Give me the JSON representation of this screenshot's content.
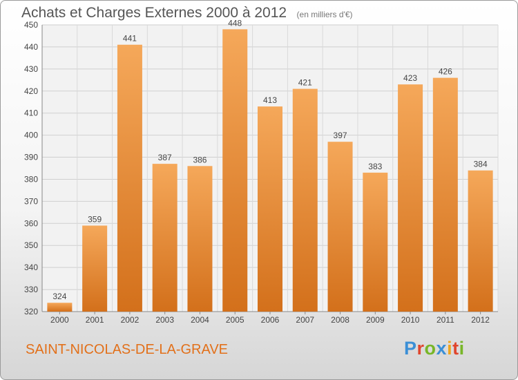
{
  "title": "Achats et Charges Externes 2000 à 2012",
  "unit_note": "(en milliers d'€)",
  "location": "SAINT-NICOLAS-DE-LA-GRAVE",
  "brand": {
    "letters": [
      "P",
      "r",
      "o",
      "x",
      "i",
      "t",
      "i"
    ],
    "colors": [
      "#3b8fd6",
      "#e0462e",
      "#78b628",
      "#3b8fd6",
      "#f0a51c",
      "#e0462e",
      "#78b628"
    ]
  },
  "colors": {
    "bar_light": "#f5a85a",
    "bar_dark": "#d3701b",
    "location_text": "#e2701a"
  },
  "chart_data": {
    "type": "bar",
    "title": "Achats et Charges Externes 2000 à 2012",
    "subtitle": "(en milliers d'€)",
    "categories": [
      "2000",
      "2001",
      "2002",
      "2003",
      "2004",
      "2005",
      "2006",
      "2007",
      "2008",
      "2009",
      "2010",
      "2011",
      "2012"
    ],
    "values": [
      324,
      359,
      441,
      387,
      386,
      448,
      413,
      421,
      397,
      383,
      423,
      426,
      384
    ],
    "ylim": [
      320,
      450
    ],
    "yticks": [
      320,
      330,
      340,
      350,
      360,
      370,
      380,
      390,
      400,
      410,
      420,
      430,
      440,
      450
    ],
    "grid": true,
    "data_labels": true,
    "legend": "none"
  }
}
